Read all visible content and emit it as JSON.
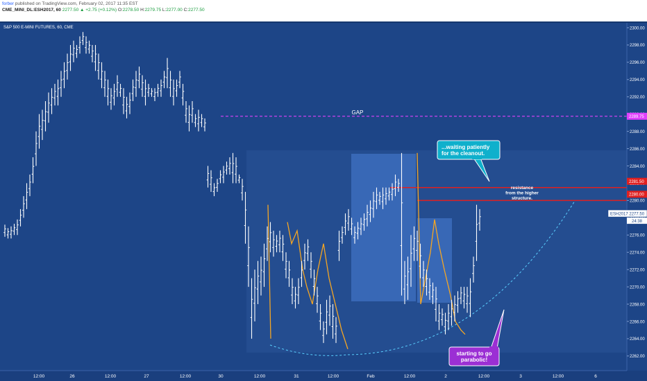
{
  "header": {
    "author": "forber",
    "published": "published on TradingView.com, February 02, 2017 11:35 EST",
    "symbol": "CME_MINI_DL:ESH2017, 60",
    "change": "2277.50 ▲ +2.75 (+0.12%)",
    "open_label": "O:",
    "open": "2278.50",
    "high_label": "H:",
    "high": "2279.75",
    "low_label": "L:",
    "low": "2277.00",
    "close_label": "C:",
    "close": "2277.50"
  },
  "chart_data": {
    "type": "bar",
    "title": "S&P 500 E-MINI FUTURES, 60, CME",
    "ylim": [
      2261,
      2302
    ],
    "y_ticks": [
      2262,
      2264,
      2266,
      2268,
      2270,
      2272,
      2274,
      2276,
      2278,
      2280,
      2282,
      2284,
      2286,
      2288,
      2290,
      2292,
      2294,
      2296,
      2298,
      2300
    ],
    "x_tick_labels": [
      "12:00",
      "26",
      "12:00",
      "27",
      "12:00",
      "30",
      "12:00",
      "31",
      "12:00",
      "Feb",
      "12:00",
      "2",
      "12:00",
      "3",
      "12:00",
      "6"
    ],
    "price_labels": [
      {
        "value": 2289.75,
        "text": "2289.75",
        "color": "#e040fb"
      },
      {
        "value": 2281.5,
        "text": "2281.50",
        "color": "#e02020"
      },
      {
        "value": 2280.0,
        "text": "2280.00",
        "color": "#e02020"
      },
      {
        "value": 2277.5,
        "text": "ESH2017 2277.50",
        "color": "#ffffff"
      }
    ],
    "countdown": "24:38",
    "levels": [
      {
        "value": 2289.75,
        "color": "#e040fb",
        "style": "dashed",
        "label": "GAP"
      },
      {
        "value": 2280.0,
        "color": "#e02020",
        "style": "solid",
        "label": ""
      },
      {
        "value": 2278.5,
        "color": "#e02020",
        "style": "solid",
        "label": ""
      }
    ],
    "annotations": [
      {
        "text": "...waiting patiently for the cleanout.",
        "lines": [
          "...waiting patiently",
          "for the cleanout."
        ],
        "style": "cyan-callout"
      },
      {
        "text": "resistance from the higher structure.",
        "lines": [
          "resistance",
          "from the higher",
          "structure."
        ],
        "style": "plain"
      },
      {
        "text": "starting to go parabolic!",
        "lines": [
          "starting to go",
          "parabolic!"
        ],
        "style": "purple-callout"
      }
    ],
    "series": [
      {
        "values": [
          [
            2275.8,
            2277.2
          ],
          [
            2275.6,
            2276.8
          ],
          [
            2275.6,
            2277.0
          ],
          [
            2276.0,
            2277.3
          ],
          [
            2276.0,
            2277.8
          ],
          [
            2277.0,
            2279.0
          ],
          [
            2278.0,
            2280.5
          ],
          [
            2279.0,
            2282.0
          ],
          [
            2280.5,
            2283.0
          ],
          [
            2282.0,
            2285.0
          ],
          [
            2284.0,
            2288.0
          ],
          [
            2286.0,
            2290.0
          ],
          [
            2287.0,
            2290.5
          ],
          [
            2288.0,
            2291.5
          ],
          [
            2289.0,
            2292.5
          ],
          [
            2290.0,
            2293.0
          ],
          [
            2291.0,
            2293.5
          ],
          [
            2291.0,
            2294.0
          ],
          [
            2292.0,
            2295.0
          ],
          [
            2293.0,
            2296.0
          ],
          [
            2294.0,
            2297.0
          ],
          [
            2295.0,
            2298.0
          ],
          [
            2296.0,
            2298.5
          ],
          [
            2296.5,
            2298.0
          ],
          [
            2297.0,
            2299.0
          ],
          [
            2298.0,
            2299.5
          ],
          [
            2297.0,
            2299.0
          ],
          [
            2297.0,
            2298.5
          ],
          [
            2296.0,
            2298.0
          ],
          [
            2295.0,
            2298.0
          ],
          [
            2294.0,
            2297.0
          ],
          [
            2293.0,
            2296.0
          ],
          [
            2292.0,
            2295.0
          ],
          [
            2291.0,
            2294.0
          ],
          [
            2290.5,
            2293.0
          ],
          [
            2291.0,
            2293.5
          ],
          [
            2292.0,
            2294.5
          ],
          [
            2292.0,
            2293.5
          ],
          [
            2290.0,
            2293.0
          ],
          [
            2289.5,
            2292.0
          ],
          [
            2290.0,
            2292.5
          ],
          [
            2291.5,
            2294.0
          ],
          [
            2292.0,
            2295.0
          ],
          [
            2293.0,
            2295.5
          ],
          [
            2292.0,
            2294.5
          ],
          [
            2291.0,
            2294.0
          ],
          [
            2292.0,
            2293.5
          ],
          [
            2292.0,
            2293.0
          ],
          [
            2291.5,
            2293.0
          ],
          [
            2292.0,
            2293.5
          ],
          [
            2292.0,
            2294.0
          ],
          [
            2293.0,
            2295.0
          ],
          [
            2293.0,
            2296.5
          ],
          [
            2292.0,
            2295.0
          ],
          [
            2291.0,
            2294.0
          ],
          [
            2292.0,
            2294.0
          ],
          [
            2293.0,
            2295.0
          ],
          [
            2291.0,
            2293.5
          ],
          [
            2289.0,
            2291.5
          ],
          [
            2288.0,
            2291.0
          ],
          [
            2289.0,
            2291.5
          ],
          [
            2288.5,
            2290.0
          ],
          [
            2288.0,
            2290.5
          ],
          [
            2288.5,
            2290.0
          ],
          [
            2288.0,
            2289.5
          ],
          [
            2281.5,
            2284.0
          ],
          [
            2281.0,
            2283.5
          ],
          [
            2280.5,
            2282.0
          ],
          [
            2281.0,
            2282.5
          ],
          [
            2282.0,
            2283.5
          ],
          [
            2282.0,
            2284.0
          ],
          [
            2283.0,
            2284.5
          ],
          [
            2283.0,
            2285.0
          ],
          [
            2282.0,
            2285.5
          ],
          [
            2282.0,
            2285.0
          ],
          [
            2282.0,
            2283.0
          ],
          [
            2280.0,
            2282.5
          ],
          [
            2275.0,
            2281.0
          ],
          [
            2270.0,
            2277.0
          ],
          [
            2264.0,
            2271.0
          ],
          [
            2266.0,
            2272.0
          ],
          [
            2268.0,
            2273.0
          ],
          [
            2269.0,
            2273.5
          ],
          [
            2270.0,
            2275.0
          ],
          [
            2273.0,
            2277.0
          ],
          [
            2274.0,
            2277.5
          ],
          [
            2273.5,
            2276.5
          ],
          [
            2274.0,
            2276.0
          ],
          [
            2274.0,
            2276.5
          ],
          [
            2273.0,
            2276.0
          ],
          [
            2271.0,
            2274.0
          ],
          [
            2270.0,
            2273.0
          ],
          [
            2268.0,
            2271.0
          ],
          [
            2267.5,
            2270.0
          ],
          [
            2268.0,
            2271.0
          ],
          [
            2270.0,
            2273.0
          ],
          [
            2272.0,
            2275.0
          ],
          [
            2273.0,
            2275.5
          ],
          [
            2271.0,
            2274.0
          ],
          [
            2269.0,
            2272.0
          ],
          [
            2267.0,
            2270.0
          ],
          [
            2265.0,
            2268.0
          ],
          [
            2263.5,
            2266.0
          ],
          [
            2264.5,
            2268.5
          ],
          [
            2265.5,
            2269.0
          ],
          [
            2264.0,
            2268.0
          ],
          [
            2263.5,
            2266.5
          ],
          [
            2273.0,
            2276.5
          ],
          [
            2275.0,
            2277.0
          ],
          [
            2276.0,
            2278.5
          ],
          [
            2276.5,
            2279.0
          ],
          [
            2276.0,
            2278.0
          ],
          [
            2275.0,
            2277.0
          ],
          [
            2275.5,
            2277.5
          ],
          [
            2276.0,
            2278.0
          ],
          [
            2276.5,
            2278.5
          ],
          [
            2277.0,
            2279.5
          ],
          [
            2277.5,
            2280.0
          ],
          [
            2278.0,
            2281.0
          ],
          [
            2279.0,
            2281.5
          ],
          [
            2279.5,
            2281.0
          ],
          [
            2279.0,
            2281.5
          ],
          [
            2279.5,
            2281.5
          ],
          [
            2280.0,
            2281.5
          ],
          [
            2280.0,
            2282.0
          ],
          [
            2280.5,
            2283.0
          ],
          [
            2281.0,
            2282.5
          ],
          [
            2269.0,
            2285.5
          ],
          [
            2268.0,
            2273.0
          ],
          [
            2268.5,
            2273.5
          ],
          [
            2270.0,
            2276.0
          ],
          [
            2273.0,
            2277.0
          ],
          [
            2273.0,
            2276.5
          ],
          [
            2271.0,
            2275.0
          ],
          [
            2270.0,
            2273.0
          ],
          [
            2269.0,
            2272.0
          ],
          [
            2268.5,
            2271.0
          ],
          [
            2268.0,
            2270.5
          ],
          [
            2266.0,
            2270.0
          ],
          [
            2265.0,
            2268.0
          ],
          [
            2265.5,
            2267.5
          ],
          [
            2264.5,
            2267.0
          ],
          [
            2265.0,
            2268.0
          ],
          [
            2265.5,
            2268.5
          ],
          [
            2266.0,
            2269.0
          ],
          [
            2267.0,
            2269.5
          ],
          [
            2268.0,
            2270.0
          ],
          [
            2267.5,
            2270.0
          ],
          [
            2267.0,
            2270.0
          ],
          [
            2266.5,
            2271.0
          ],
          [
            2270.5,
            2273.5
          ],
          [
            2273.0,
            2279.5
          ],
          [
            2276.5,
            2279.0
          ]
        ]
      }
    ]
  }
}
